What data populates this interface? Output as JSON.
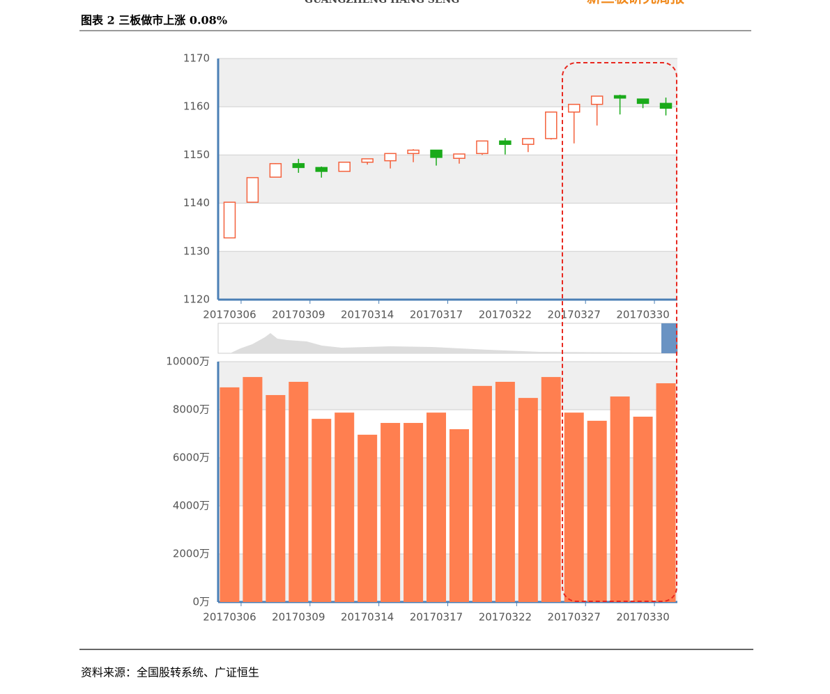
{
  "header": {
    "brand": "GUANGZHENG HANG SENG",
    "report": "新三板研究周报"
  },
  "figure_title": "图表 2 三板做市上涨 0.08%",
  "chart_data": [
    {
      "type": "candlestick",
      "categories": [
        "20170306",
        null,
        null,
        "20170309",
        null,
        null,
        "20170314",
        null,
        null,
        "20170317",
        null,
        null,
        "20170322",
        null,
        null,
        "20170327",
        null,
        null,
        "20170330",
        null
      ],
      "open": [
        1132.8,
        1140.2,
        1145.4,
        1148.2,
        1147.4,
        1146.6,
        1148.5,
        1148.8,
        1150.3,
        1151.0,
        1149.3,
        1150.3,
        1152.9,
        1152.2,
        1153.4,
        1158.9,
        1160.5,
        1162.3,
        1161.6,
        1160.7
      ],
      "high": [
        1140.2,
        1145.3,
        1148.3,
        1149.2,
        1147.6,
        1148.5,
        1149.2,
        1150.3,
        1151.2,
        1151.0,
        1150.2,
        1152.9,
        1153.5,
        1153.4,
        1158.9,
        1160.5,
        1162.2,
        1162.5,
        1161.6,
        1161.9
      ],
      "low": [
        1132.8,
        1140.2,
        1145.4,
        1146.3,
        1145.3,
        1146.6,
        1148.0,
        1147.2,
        1148.5,
        1147.8,
        1148.2,
        1150.0,
        1150.1,
        1150.6,
        1153.2,
        1152.4,
        1156.1,
        1158.4,
        1159.7,
        1158.2
      ],
      "close": [
        1140.2,
        1145.3,
        1148.2,
        1147.4,
        1146.6,
        1148.5,
        1149.2,
        1150.3,
        1151.0,
        1149.5,
        1150.2,
        1152.9,
        1152.2,
        1153.4,
        1158.9,
        1160.5,
        1162.2,
        1161.8,
        1160.7,
        1159.7
      ],
      "up_color": "#f4613c",
      "down_color": "#1aaa1a",
      "ylim": [
        1120,
        1170
      ],
      "yticks": [
        1120,
        1130,
        1140,
        1150,
        1160,
        1170
      ],
      "grid": true
    },
    {
      "type": "bar",
      "categories": [
        "20170306",
        null,
        null,
        "20170309",
        null,
        null,
        "20170314",
        null,
        null,
        "20170317",
        null,
        null,
        "20170322",
        null,
        null,
        "20170327",
        null,
        null,
        "20170330",
        null
      ],
      "values": [
        8930,
        9360,
        8610,
        9160,
        7620,
        7880,
        6960,
        7450,
        7450,
        7880,
        7190,
        8990,
        9160,
        8490,
        9360,
        7880,
        7540,
        8550,
        7710,
        9100
      ],
      "color": "#ff7f50",
      "ylim": [
        0,
        10000
      ],
      "yticks": [
        {
          "value": 0,
          "label": "0万"
        },
        {
          "value": 2000,
          "label": "2000万"
        },
        {
          "value": 4000,
          "label": "4000万"
        },
        {
          "value": 6000,
          "label": "6000万"
        },
        {
          "value": 8000,
          "label": "8000万"
        },
        {
          "value": 10000,
          "label": "10000万"
        }
      ],
      "grid": true
    }
  ],
  "source": "资料来源：全国股转系统、广证恒生"
}
